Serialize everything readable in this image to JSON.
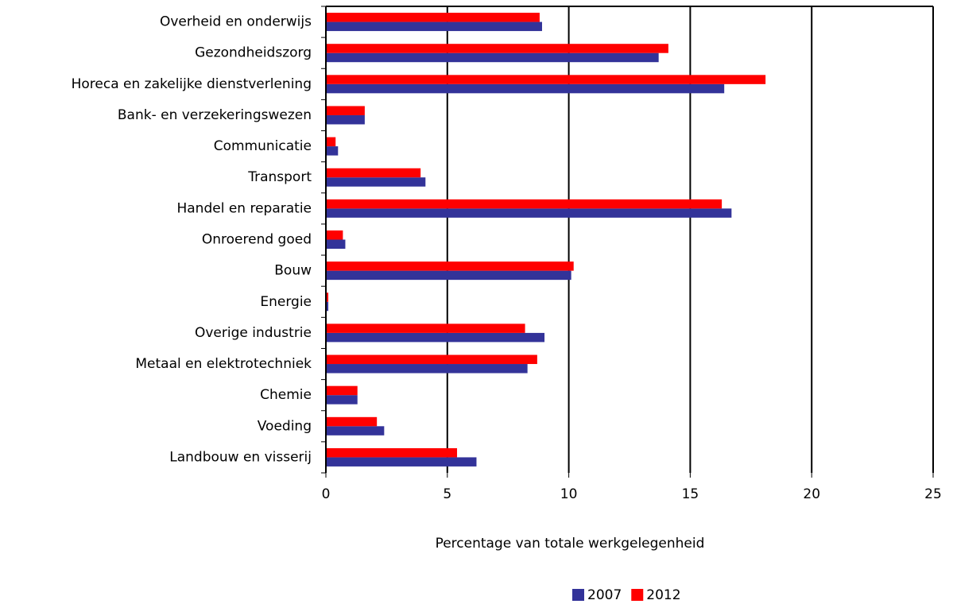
{
  "chart_data": {
    "type": "bar",
    "orientation": "horizontal",
    "x_label": "Percentage van totale werkgelegenheid",
    "categories": [
      "Overheid en onderwijs",
      "Gezondheidszorg",
      "Horeca en zakelijke dienstverlening",
      "Bank- en verzekeringswezen",
      "Communicatie",
      "Transport",
      "Handel en reparatie",
      "Onroerend goed",
      "Bouw",
      "Energie",
      "Overige industrie",
      "Metaal en elektrotechniek",
      "Chemie",
      "Voeding",
      "Landbouw en visserij"
    ],
    "series": [
      {
        "name": "2007",
        "color": "#333399",
        "values": [
          8.9,
          13.7,
          16.4,
          1.6,
          0.5,
          4.1,
          16.7,
          0.8,
          10.1,
          0.1,
          9.0,
          8.3,
          1.3,
          2.4,
          6.2
        ]
      },
      {
        "name": "2012",
        "color": "#ff0000",
        "values": [
          8.8,
          14.1,
          18.1,
          1.6,
          0.4,
          3.9,
          16.3,
          0.7,
          10.2,
          0.1,
          8.2,
          8.7,
          1.3,
          2.1,
          5.4
        ]
      }
    ],
    "xlim": [
      0,
      25
    ],
    "xticks": [
      0,
      5,
      10,
      15,
      20,
      25
    ],
    "grid": true,
    "legend": "bottom"
  }
}
